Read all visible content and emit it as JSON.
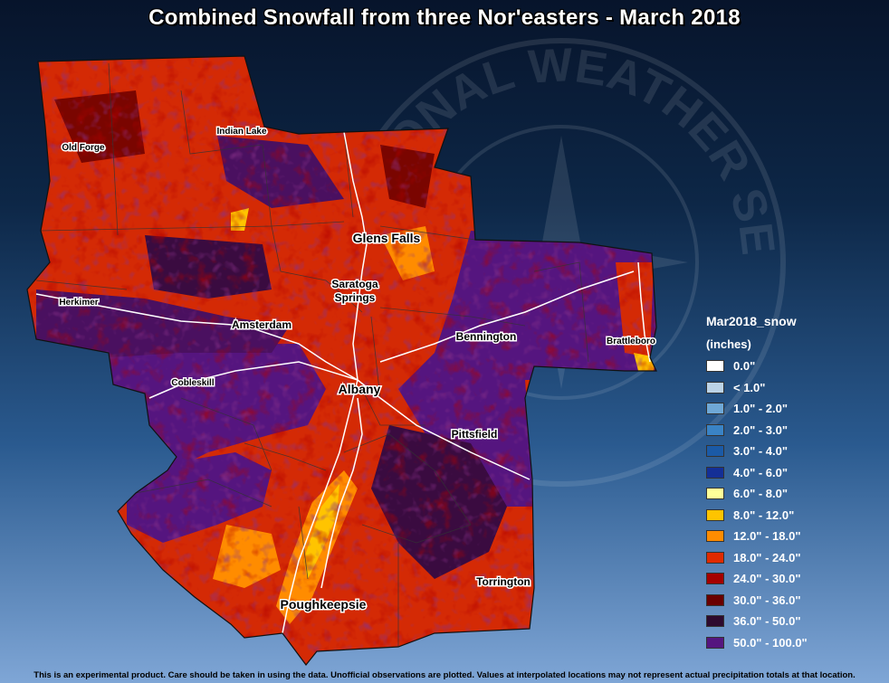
{
  "title": "Combined Snowfall from three Nor'easters - March 2018",
  "legend": {
    "title": "Mar2018_snow",
    "units": "(inches)",
    "items": [
      {
        "label": "0.0\"",
        "color": "#ffffff"
      },
      {
        "label": "< 1.0\"",
        "color": "#bcd3e6"
      },
      {
        "label": "1.0\" - 2.0\"",
        "color": "#6fa8d6"
      },
      {
        "label": "2.0\" - 3.0\"",
        "color": "#3a83c5"
      },
      {
        "label": "3.0\" - 4.0\"",
        "color": "#1b5aa6"
      },
      {
        "label": "4.0\" - 6.0\"",
        "color": "#142f96"
      },
      {
        "label": "6.0\" - 8.0\"",
        "color": "#ffff99"
      },
      {
        "label": "8.0\" - 12.0\"",
        "color": "#ffc400"
      },
      {
        "label": "12.0\" - 18.0\"",
        "color": "#ff8c00"
      },
      {
        "label": "18.0\" - 24.0\"",
        "color": "#e02a00"
      },
      {
        "label": "24.0\" - 30.0\"",
        "color": "#a50000"
      },
      {
        "label": "30.0\" - 36.0\"",
        "color": "#6a0000"
      },
      {
        "label": "36.0\" - 50.0\"",
        "color": "#2e0a2e"
      },
      {
        "label": "50.0\" - 100.0\"",
        "color": "#55157f"
      }
    ]
  },
  "cities": [
    {
      "name": "Old Forge",
      "size": "small"
    },
    {
      "name": "Indian Lake",
      "size": "small"
    },
    {
      "name": "Glens Falls",
      "size": "large"
    },
    {
      "name": "Saratoga",
      "size": "medium"
    },
    {
      "name": "Springs",
      "size": "medium"
    },
    {
      "name": "Herkimer",
      "size": "small"
    },
    {
      "name": "Amsterdam",
      "size": "medium"
    },
    {
      "name": "Bennington",
      "size": "medium"
    },
    {
      "name": "Brattleboro",
      "size": "small"
    },
    {
      "name": "Cobleskill",
      "size": "small"
    },
    {
      "name": "Albany",
      "size": "large"
    },
    {
      "name": "Pittsfield",
      "size": "medium"
    },
    {
      "name": "Torrington",
      "size": "medium"
    },
    {
      "name": "Poughkeepsie",
      "size": "large"
    }
  ],
  "watermark_text": "NATIONAL WEATHER SERVICE",
  "footer": "This is an experimental product. Care should be taken in using the data. Unofficial observations are plotted. Values at interpolated locations may not represent actual precipitation totals at that location."
}
